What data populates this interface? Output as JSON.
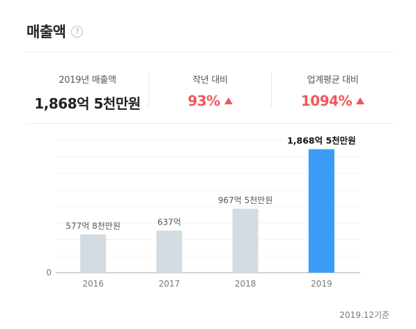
{
  "header": {
    "title": "매출액",
    "help_glyph": "?"
  },
  "stats": [
    {
      "label": "2019년 매출액",
      "value": "1,868억 5천만원"
    },
    {
      "label": "작년 대비",
      "value": "93%",
      "trend": "up-triangle-icon"
    },
    {
      "label": "업계평균 대비",
      "value": "1094%",
      "trend": "up-triangle-icon"
    }
  ],
  "colors": {
    "accent_red": "#f0575b",
    "bar_grey": "#d3dce3",
    "bar_highlight": "#3d9bf8"
  },
  "chart_data": {
    "type": "bar",
    "categories": [
      "2016",
      "2017",
      "2018",
      "2019"
    ],
    "values": [
      577.8,
      637,
      967.5,
      1868.5
    ],
    "data_labels": [
      "577억 8천만원",
      "637억",
      "967억 5천만원",
      "1,868억 5천만원"
    ],
    "highlight_index": 3,
    "y_tick_labels": [
      "0"
    ],
    "ylim": [
      0,
      2000
    ],
    "grid": true
  },
  "footnote": "2019.12기준"
}
